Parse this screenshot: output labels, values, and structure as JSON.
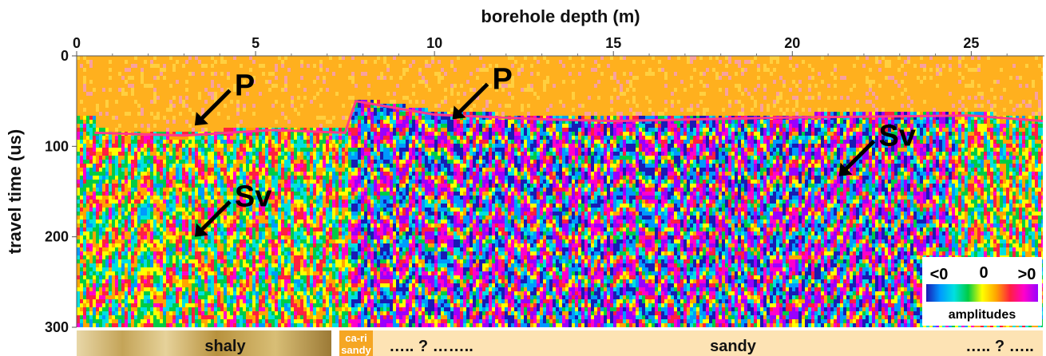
{
  "chart_data": {
    "type": "heatmap",
    "title": "",
    "xlabel": "borehole depth (m)",
    "ylabel": "travel time (us)",
    "xlim": [
      0,
      27
    ],
    "ylim": [
      0,
      300
    ],
    "y_inverted": true,
    "x_ticks": [
      0,
      5,
      10,
      15,
      20,
      25
    ],
    "y_ticks": [
      0,
      100,
      200,
      300
    ],
    "first_arrival_time_us": [
      {
        "x": 0.5,
        "y": 85
      },
      {
        "x": 3,
        "y": 88
      },
      {
        "x": 5.5,
        "y": 82
      },
      {
        "x": 7.5,
        "y": 85
      },
      {
        "x": 7.8,
        "y": 50
      },
      {
        "x": 10,
        "y": 65
      },
      {
        "x": 13,
        "y": 70
      },
      {
        "x": 15,
        "y": 72
      },
      {
        "x": 20,
        "y": 68
      },
      {
        "x": 25,
        "y": 66
      },
      {
        "x": 27,
        "y": 72
      }
    ],
    "annotations": [
      {
        "text": "P",
        "arrow_tip": {
          "x": 3.3,
          "y": 77
        }
      },
      {
        "text": "P",
        "arrow_tip": {
          "x": 10.5,
          "y": 70
        }
      },
      {
        "text": "Sv",
        "arrow_tip": {
          "x": 3.3,
          "y": 200
        }
      },
      {
        "text": "Sv",
        "arrow_tip": {
          "x": 21.3,
          "y": 133
        }
      }
    ],
    "colorbar": {
      "title": "amplitudes",
      "labels": [
        "<0",
        "0",
        ">0"
      ],
      "colors": [
        "#1a1ab4",
        "#0099ff",
        "#00e0e0",
        "#00cc44",
        "#ffff00",
        "#ffa500",
        "#ff2040",
        "#ff00cc",
        "#9900ff"
      ],
      "placement": "bottom-right"
    },
    "lithology": [
      {
        "label": "shaly",
        "from_m": 0,
        "to_m": 7.5
      },
      {
        "label": "ca-ri sandy",
        "from_m": 7.5,
        "to_m": 8.5
      },
      {
        "label": "….. ? ……..",
        "from_m": 8.5,
        "to_m": 13.5
      },
      {
        "label": "sandy",
        "from_m": 13.5,
        "to_m": 25
      },
      {
        "label": "….. ? …..",
        "from_m": 25,
        "to_m": 27
      }
    ]
  },
  "colors": {
    "background_orange": "#ffb01e",
    "shaly_gold": "#c9a85a",
    "sandy_beige": "#fde3b4",
    "cari_orange": "#f5a623"
  }
}
